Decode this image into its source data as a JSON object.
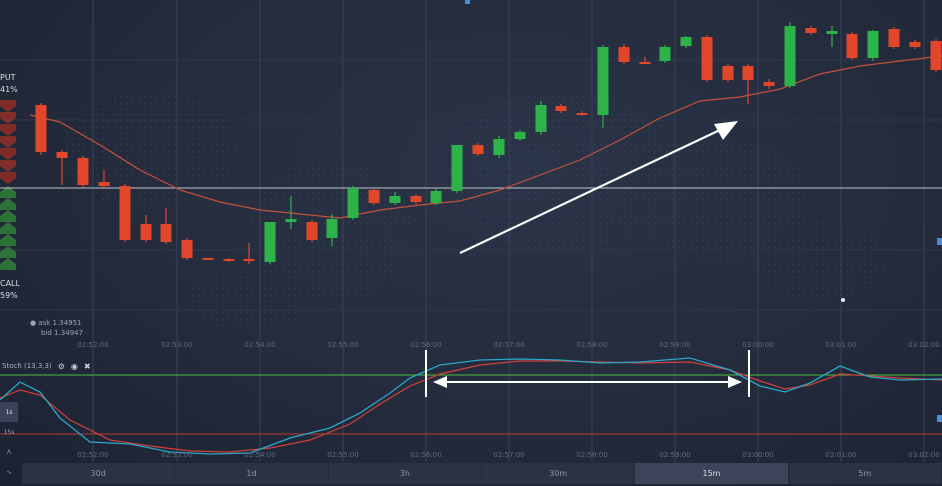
{
  "colors": {
    "bull": "#2db34a",
    "bear": "#e2472b",
    "ma": "#c4513b",
    "stoch_k": "#2aa6c9",
    "stoch_d": "#d2413a",
    "level_high": "#4cbf3c",
    "level_low": "#c0392b",
    "arrow": "#ffffff"
  },
  "sidebar": {
    "put_label": "PUT",
    "put_pct": "41%",
    "call_label": "CALL",
    "call_pct": "59%"
  },
  "quote": {
    "ask": "ask 1.34951",
    "bid": "bid 1.34947"
  },
  "time_axis": [
    "02:52:00",
    "02:53:00",
    "02:54:00",
    "02:55:00",
    "02:56:00",
    "02:57:00",
    "02:58:00",
    "02:59:00",
    "03:00:00",
    "03:01:00",
    "03:02:00"
  ],
  "indicator": {
    "name": "Stoch (13,3,3)",
    "gear_icon": "gear-icon",
    "eye_icon": "eye-icon",
    "close_icon": "close-icon"
  },
  "left_tools": [
    "1s",
    "15s",
    "chart-type-icon",
    "trend-icon"
  ],
  "timeframes": [
    {
      "label": "30d",
      "active": false
    },
    {
      "label": "1d",
      "active": false
    },
    {
      "label": "3h",
      "active": false
    },
    {
      "label": "30m",
      "active": false
    },
    {
      "label": "15m",
      "active": true
    },
    {
      "label": "5m",
      "active": false
    }
  ]
}
